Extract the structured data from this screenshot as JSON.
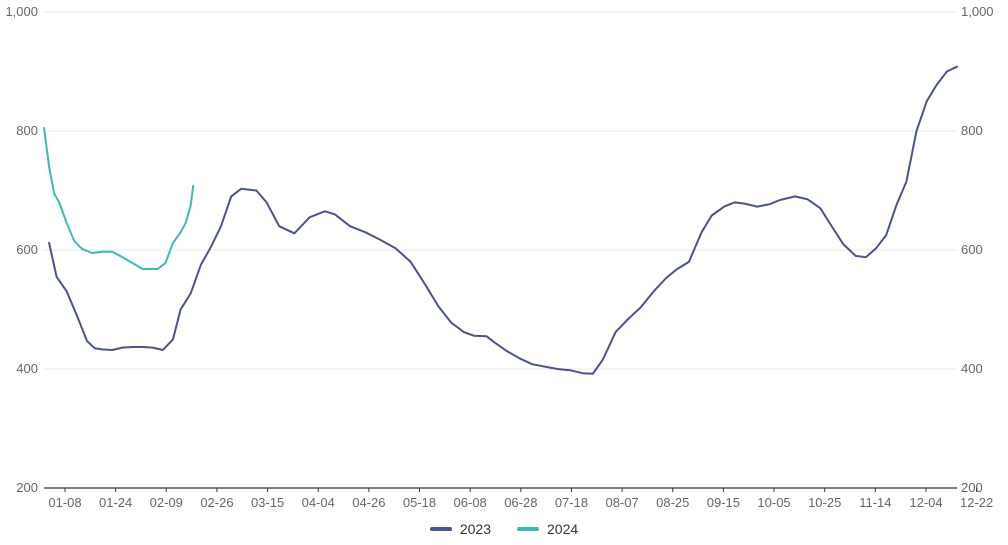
{
  "chart_data": {
    "type": "line",
    "y_axis_left": {
      "ticks": [
        "200",
        "400",
        "600",
        "800",
        "1,000"
      ],
      "ylim": [
        200,
        1000
      ]
    },
    "y_axis_right": {
      "ticks": [
        "200",
        "400",
        "600",
        "800",
        "1,000"
      ]
    },
    "x_axis": {
      "tick_labels": [
        "01-08",
        "01-24",
        "02-09",
        "02-26",
        "03-15",
        "04-04",
        "04-26",
        "05-18",
        "06-08",
        "06-28",
        "07-18",
        "08-07",
        "08-25",
        "09-15",
        "10-05",
        "10-25",
        "11-14",
        "12-04",
        "12-22"
      ]
    },
    "grid": true,
    "legend_position": "bottom",
    "series": [
      {
        "name": "2023",
        "color": "#4a5486",
        "x": [
          "01-03",
          "01-06",
          "01-10",
          "01-14",
          "01-18",
          "01-21",
          "01-24",
          "01-28",
          "02-01",
          "02-05",
          "02-09",
          "02-13",
          "02-17",
          "02-21",
          "02-24",
          "02-28",
          "03-04",
          "03-08",
          "03-12",
          "03-16",
          "03-20",
          "03-26",
          "03-30",
          "04-04",
          "04-10",
          "04-16",
          "04-22",
          "04-26",
          "05-02",
          "05-08",
          "05-14",
          "05-20",
          "05-26",
          "06-01",
          "06-06",
          "06-11",
          "06-16",
          "06-20",
          "06-25",
          "06-28",
          "07-03",
          "07-08",
          "07-13",
          "07-18",
          "07-23",
          "07-28",
          "08-02",
          "08-06",
          "08-10",
          "08-15",
          "08-20",
          "08-25",
          "08-30",
          "09-04",
          "09-08",
          "09-13",
          "09-18",
          "09-22",
          "09-27",
          "10-01",
          "10-05",
          "10-10",
          "10-15",
          "10-19",
          "10-25",
          "10-30",
          "11-04",
          "11-08",
          "11-13",
          "11-18",
          "11-22",
          "11-26",
          "11-30",
          "12-04",
          "12-08",
          "12-12",
          "12-16",
          "12-20",
          "12-24",
          "12-28"
        ],
        "values": [
          612,
          555,
          530,
          490,
          447,
          435,
          433,
          432,
          436,
          437,
          437,
          436,
          432,
          450,
          500,
          527,
          575,
          605,
          640,
          690,
          703,
          700,
          680,
          640,
          628,
          655,
          665,
          660,
          640,
          630,
          617,
          603,
          580,
          540,
          505,
          478,
          462,
          456,
          455,
          445,
          430,
          418,
          408,
          404,
          400,
          398,
          393,
          392,
          416,
          462,
          484,
          504,
          530,
          553,
          567,
          580,
          630,
          658,
          673,
          680,
          678,
          673,
          677,
          684,
          690,
          685,
          670,
          643,
          610,
          590,
          588,
          603,
          625,
          675,
          715,
          800,
          850,
          878,
          900,
          908
        ]
      },
      {
        "name": "2024",
        "color": "#3fb8b3",
        "x": [
          "01-01",
          "01-03",
          "01-05",
          "01-07",
          "01-10",
          "01-13",
          "01-16",
          "01-20",
          "01-24",
          "01-28",
          "02-01",
          "02-05",
          "02-09",
          "02-12",
          "02-15",
          "02-18",
          "02-21",
          "02-24",
          "02-26",
          "02-28",
          "03-01"
        ],
        "values": [
          805,
          740,
          695,
          680,
          645,
          615,
          602,
          595,
          597,
          597,
          588,
          578,
          568,
          568,
          568,
          578,
          612,
          630,
          645,
          675,
          708
        ]
      }
    ]
  }
}
